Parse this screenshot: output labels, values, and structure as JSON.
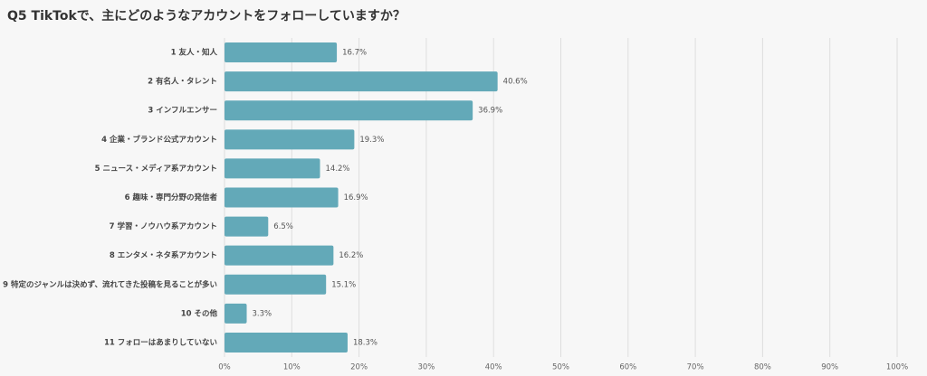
{
  "chart_data": {
    "type": "bar",
    "orientation": "horizontal",
    "title": "Q5 TikTokで、主にどのようなアカウントをフォローしていますか？",
    "categories": [
      "1 友人・知人",
      "2 有名人・タレント",
      "3 インフルエンサー",
      "4 企業・ブランド公式アカウント",
      "5 ニュース・メディア系アカウント",
      "6 趣味・専門分野の発信者",
      "7 学習・ノウハウ系アカウント",
      "8 エンタメ・ネタ系アカウント",
      "9 特定のジャンルは決めず、流れてきた投稿を見ることが多い",
      "10 その他",
      "11 フォローはあまりしていない"
    ],
    "values": [
      16.7,
      40.6,
      36.9,
      19.3,
      14.2,
      16.9,
      6.5,
      16.2,
      15.1,
      3.3,
      18.3
    ],
    "value_labels": [
      "16.7%",
      "40.6%",
      "36.9%",
      "19.3%",
      "14.2%",
      "16.9%",
      "6.5%",
      "16.2%",
      "15.1%",
      "3.3%",
      "18.3%"
    ],
    "color": "#63a9b8",
    "xlim": [
      0,
      100
    ],
    "xticks": [
      {
        "value": 0,
        "label": "0%"
      },
      {
        "value": 10,
        "label": "10%"
      },
      {
        "value": 20,
        "label": "20%"
      },
      {
        "value": 30,
        "label": "30%"
      },
      {
        "value": 40,
        "label": "40%"
      },
      {
        "value": 50,
        "label": "50%"
      },
      {
        "value": 60,
        "label": "60%"
      },
      {
        "value": 70,
        "label": "70%"
      },
      {
        "value": 80,
        "label": "80%"
      },
      {
        "value": 90,
        "label": "90%"
      },
      {
        "value": 100,
        "label": "100%"
      }
    ],
    "grid": true
  }
}
